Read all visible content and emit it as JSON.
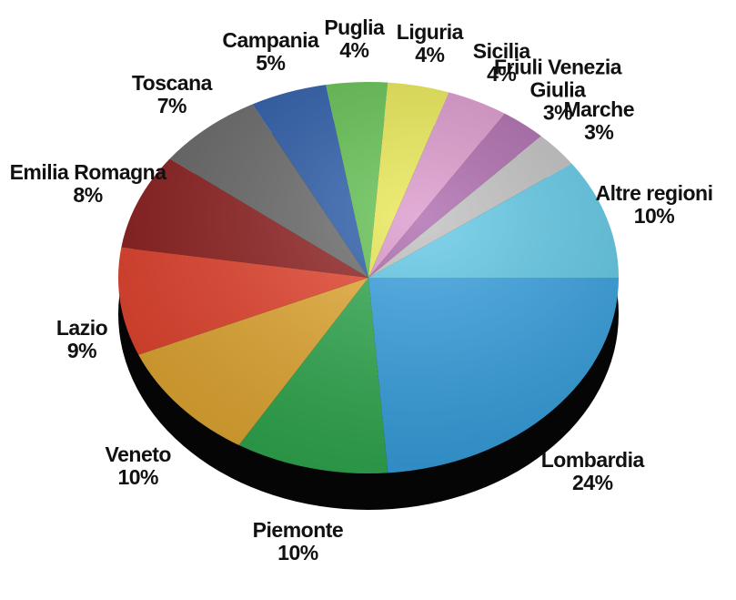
{
  "chart_data": {
    "type": "pie",
    "categories": [
      "Lombardia",
      "Piemonte",
      "Veneto",
      "Lazio",
      "Emilia Romagna",
      "Toscana",
      "Campania",
      "Puglia",
      "Liguria",
      "Sicilia",
      "Friuli Venezia Giulia",
      "Marche",
      "Altre regioni"
    ],
    "values": [
      24,
      10,
      10,
      9,
      8,
      7,
      5,
      4,
      4,
      4,
      3,
      3,
      10
    ],
    "value_labels": [
      "24%",
      "10%",
      "10%",
      "9%",
      "8%",
      "7%",
      "5%",
      "4%",
      "4%",
      "4%",
      "3%",
      "3%",
      "10%"
    ],
    "colors": [
      "#2f9ee0",
      "#2aa84a",
      "#e6a92e",
      "#e8402a",
      "#8e1b1b",
      "#666666",
      "#2457a8",
      "#5cbf4a",
      "#e9e84c",
      "#d993c9",
      "#a862a8",
      "#bdbdbd",
      "#5ac7e6"
    ]
  }
}
